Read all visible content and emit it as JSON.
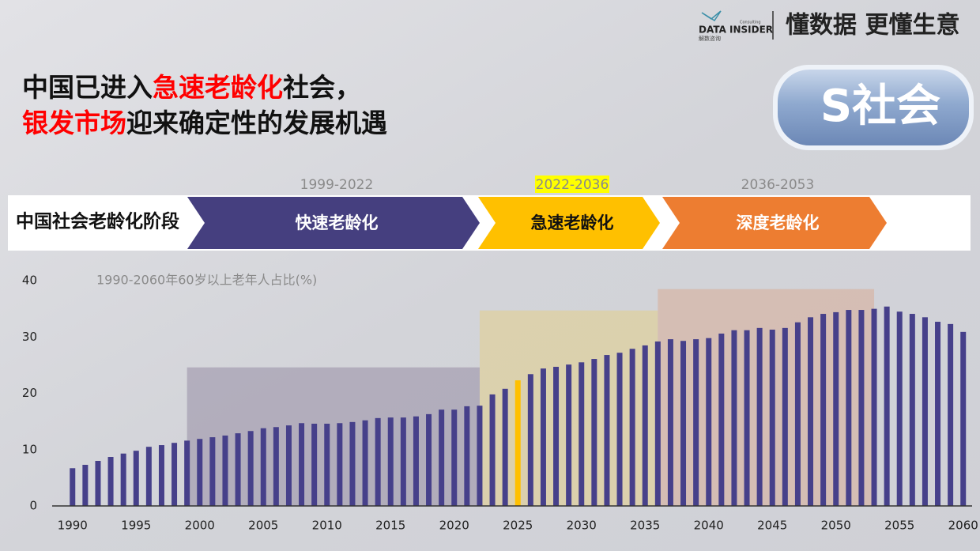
{
  "header": {
    "brand": "DATA INSIDER",
    "brand_tag": "Consulting",
    "brand_sub": "解数咨询",
    "slogan": "懂数据 更懂生意"
  },
  "headline": [
    [
      {
        "text": "中国已进入",
        "color": "#111111"
      },
      {
        "text": "急速老龄化",
        "color": "#ff0000"
      },
      {
        "text": "社会，",
        "color": "#111111"
      }
    ],
    [
      {
        "text": "银发市场",
        "color": "#ff0000"
      },
      {
        "text": "迎来确定性的发展机遇",
        "color": "#111111"
      }
    ]
  ],
  "badge": "S社会",
  "stages": {
    "label": "中国社会老龄化阶段",
    "items": [
      {
        "period": "1999-2022",
        "name": "快速老龄化",
        "color": "#453f7f"
      },
      {
        "period": "2022-2036",
        "name": "急速老龄化",
        "color": "#ffc000",
        "period_highlight": "#ffff00"
      },
      {
        "period": "2036-2053",
        "name": "深度老龄化",
        "color": "#ed7d31"
      }
    ]
  },
  "chart_data": {
    "type": "bar",
    "title": "1990-2060年60岁以上老年人占比(%)",
    "x": [
      1990,
      1991,
      1992,
      1993,
      1994,
      1995,
      1996,
      1997,
      1998,
      1999,
      2000,
      2001,
      2002,
      2003,
      2004,
      2005,
      2006,
      2007,
      2008,
      2009,
      2010,
      2011,
      2012,
      2013,
      2014,
      2015,
      2016,
      2017,
      2018,
      2019,
      2020,
      2021,
      2022,
      2023,
      2024,
      2025,
      2026,
      2027,
      2028,
      2029,
      2030,
      2031,
      2032,
      2033,
      2034,
      2035,
      2036,
      2037,
      2038,
      2039,
      2040,
      2041,
      2042,
      2043,
      2044,
      2045,
      2046,
      2047,
      2048,
      2049,
      2050,
      2051,
      2052,
      2053,
      2054,
      2055,
      2056,
      2057,
      2058,
      2059,
      2060
    ],
    "values": [
      6.7,
      7.3,
      8.0,
      8.7,
      9.3,
      9.8,
      10.5,
      10.8,
      11.2,
      11.6,
      11.9,
      12.2,
      12.5,
      12.9,
      13.3,
      13.8,
      14.0,
      14.3,
      14.7,
      14.6,
      14.6,
      14.7,
      14.9,
      15.2,
      15.6,
      15.7,
      15.7,
      15.9,
      16.3,
      17.1,
      17.1,
      17.7,
      17.8,
      19.8,
      20.8,
      22.3,
      23.4,
      24.4,
      24.7,
      25.1,
      25.5,
      26.1,
      26.8,
      27.2,
      27.9,
      28.5,
      29.2,
      29.6,
      29.3,
      29.6,
      29.8,
      30.6,
      31.2,
      31.2,
      31.6,
      31.3,
      31.6,
      32.6,
      33.5,
      34.1,
      34.4,
      34.8,
      34.8,
      35.0,
      35.4,
      34.5,
      34.1,
      33.5,
      32.7,
      32.3,
      30.9
    ],
    "color": "#46408a",
    "highlight": {
      "x": 2025,
      "color": "#ffc000"
    },
    "bands": [
      {
        "from": 1999,
        "to": 2022,
        "top": 24.6,
        "color": "#8a7f9a"
      },
      {
        "from": 2022,
        "to": 2036,
        "top": 34.7,
        "color": "#e6cf7a"
      },
      {
        "from": 2036,
        "to": 2053,
        "top": 38.5,
        "color": "#d9a58a"
      }
    ],
    "xlim": [
      1988.4,
      2060.7
    ],
    "ylim": [
      0,
      40
    ],
    "xticks": [
      1990,
      1995,
      2000,
      2005,
      2010,
      2015,
      2020,
      2025,
      2030,
      2035,
      2040,
      2045,
      2050,
      2055,
      2060
    ],
    "yticks": [
      0,
      10,
      20,
      30,
      40
    ]
  }
}
